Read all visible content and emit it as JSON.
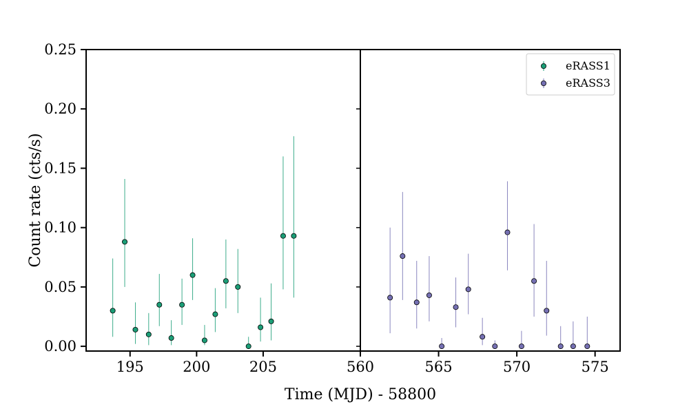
{
  "chart_data": {
    "type": "scatter",
    "xlabel": "Time (MJD) - 58800",
    "ylabel": "Count rate (cts/s)",
    "ylim": [
      -0.004,
      0.25
    ],
    "yticks": [
      "0.00",
      "0.05",
      "0.10",
      "0.15",
      "0.20",
      "0.25"
    ],
    "legend_position": "top-right",
    "panels": [
      {
        "xlim": [
          191.7,
          212.3
        ],
        "xticks": [
          "195",
          "200",
          "205"
        ],
        "series_index": 0
      },
      {
        "xlim": [
          560,
          576.6
        ],
        "xticks": [
          "560",
          "565",
          "570",
          "575"
        ],
        "series_index": 1
      }
    ],
    "series": [
      {
        "name": "eRASS1",
        "color": "#1b9e77",
        "points": [
          {
            "x": 193.7,
            "y": 0.03,
            "lo": 0.008,
            "hi": 0.074
          },
          {
            "x": 194.6,
            "y": 0.088,
            "lo": 0.05,
            "hi": 0.141
          },
          {
            "x": 195.4,
            "y": 0.014,
            "lo": 0.002,
            "hi": 0.037
          },
          {
            "x": 196.4,
            "y": 0.01,
            "lo": 0.001,
            "hi": 0.028
          },
          {
            "x": 197.2,
            "y": 0.035,
            "lo": 0.017,
            "hi": 0.061
          },
          {
            "x": 198.1,
            "y": 0.007,
            "lo": 0.001,
            "hi": 0.022
          },
          {
            "x": 198.9,
            "y": 0.035,
            "lo": 0.018,
            "hi": 0.057
          },
          {
            "x": 199.7,
            "y": 0.06,
            "lo": 0.039,
            "hi": 0.091
          },
          {
            "x": 200.6,
            "y": 0.005,
            "lo": 0.001,
            "hi": 0.018
          },
          {
            "x": 201.4,
            "y": 0.027,
            "lo": 0.012,
            "hi": 0.049
          },
          {
            "x": 202.2,
            "y": 0.055,
            "lo": 0.032,
            "hi": 0.09
          },
          {
            "x": 203.1,
            "y": 0.05,
            "lo": 0.028,
            "hi": 0.082
          },
          {
            "x": 203.9,
            "y": 0.0,
            "lo": 0.0,
            "hi": 0.008
          },
          {
            "x": 204.8,
            "y": 0.016,
            "lo": 0.004,
            "hi": 0.041
          },
          {
            "x": 205.6,
            "y": 0.021,
            "lo": 0.005,
            "hi": 0.053
          },
          {
            "x": 206.5,
            "y": 0.093,
            "lo": 0.048,
            "hi": 0.16
          },
          {
            "x": 207.3,
            "y": 0.093,
            "lo": 0.041,
            "hi": 0.177
          }
        ]
      },
      {
        "name": "eRASS3",
        "color": "#7570b3",
        "points": [
          {
            "x": 561.9,
            "y": 0.041,
            "lo": 0.011,
            "hi": 0.1
          },
          {
            "x": 562.7,
            "y": 0.076,
            "lo": 0.039,
            "hi": 0.13
          },
          {
            "x": 563.6,
            "y": 0.037,
            "lo": 0.015,
            "hi": 0.072
          },
          {
            "x": 564.4,
            "y": 0.043,
            "lo": 0.021,
            "hi": 0.076
          },
          {
            "x": 565.2,
            "y": 0.0,
            "lo": 0.0,
            "hi": 0.007
          },
          {
            "x": 566.1,
            "y": 0.033,
            "lo": 0.016,
            "hi": 0.058
          },
          {
            "x": 566.9,
            "y": 0.048,
            "lo": 0.027,
            "hi": 0.078
          },
          {
            "x": 567.8,
            "y": 0.008,
            "lo": 0.001,
            "hi": 0.024
          },
          {
            "x": 568.6,
            "y": 0.0,
            "lo": 0.0,
            "hi": 0.005
          },
          {
            "x": 569.4,
            "y": 0.096,
            "lo": 0.064,
            "hi": 0.139
          },
          {
            "x": 570.3,
            "y": 0.0,
            "lo": 0.0,
            "hi": 0.013
          },
          {
            "x": 571.1,
            "y": 0.055,
            "lo": 0.025,
            "hi": 0.103
          },
          {
            "x": 571.9,
            "y": 0.03,
            "lo": 0.009,
            "hi": 0.072
          },
          {
            "x": 572.8,
            "y": 0.0,
            "lo": 0.0,
            "hi": 0.017
          },
          {
            "x": 573.6,
            "y": 0.0,
            "lo": 0.0,
            "hi": 0.021
          },
          {
            "x": 574.5,
            "y": 0.0,
            "lo": 0.0,
            "hi": 0.025
          }
        ]
      }
    ]
  }
}
